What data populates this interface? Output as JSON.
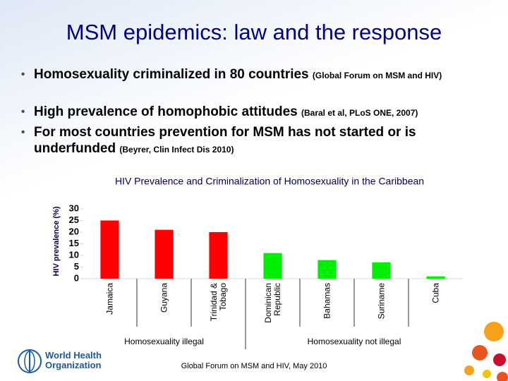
{
  "slide": {
    "title": "MSM epidemics: law and the response",
    "bullets": [
      {
        "text": "Homosexuality criminalized in 80 countries",
        "source": "(Global Forum on MSM and HIV)"
      },
      {
        "text": "High prevalence of homophobic attitudes",
        "source": "(Baral et al, PLoS ONE, 2007)"
      },
      {
        "text": "For most countries prevention for MSM has not started or is underfunded",
        "source": "(Beyrer, Clin Infect Dis 2010)"
      }
    ],
    "footer": "Global Forum on MSM and HIV, May 2010",
    "logo": [
      "World Health",
      "Organization"
    ]
  },
  "chart_data": {
    "type": "bar",
    "title": "HIV Prevalence and Criminalization of Homosexuality in the Caribbean",
    "y_label": "HIV prevalence (%)",
    "categories": [
      "Jamaica",
      "Guyana",
      "Trinidad & Tobago",
      "Dominican Republic",
      "Bahamas",
      "Suriname",
      "Cuba"
    ],
    "series": [
      {
        "name": "Homosexuality illegal",
        "color": "#ff0000",
        "values": [
          25,
          21,
          20,
          null,
          null,
          null,
          null
        ]
      },
      {
        "name": "Homosexuality not illegal",
        "color": "#00ee00",
        "values": [
          null,
          null,
          null,
          11,
          8,
          7,
          1
        ]
      }
    ],
    "ylim": [
      0,
      30
    ],
    "yticks": [
      0,
      5,
      10,
      15,
      20,
      25,
      30
    ]
  }
}
